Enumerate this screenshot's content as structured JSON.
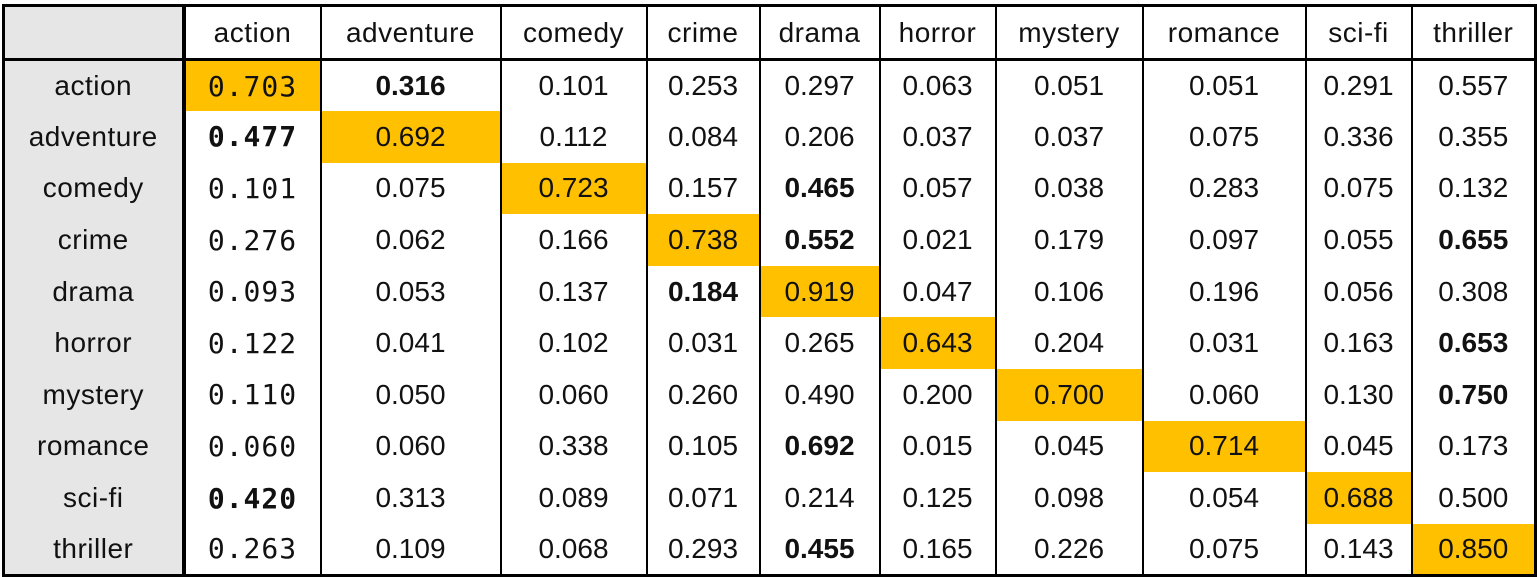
{
  "colors": {
    "diagonal_highlight": "#ffc000",
    "label_background": "#e6e6e6",
    "border": "#000000"
  },
  "chart_data": {
    "type": "table",
    "columns": [
      "action",
      "adventure",
      "comedy",
      "crime",
      "drama",
      "horror",
      "mystery",
      "romance",
      "sci-fi",
      "thriller"
    ],
    "rows": [
      "action",
      "adventure",
      "comedy",
      "crime",
      "drama",
      "horror",
      "mystery",
      "romance",
      "sci-fi",
      "thriller"
    ],
    "values": [
      [
        "0.703",
        "0.316",
        "0.101",
        "0.253",
        "0.297",
        "0.063",
        "0.051",
        "0.051",
        "0.291",
        "0.557"
      ],
      [
        "0.477",
        "0.692",
        "0.112",
        "0.084",
        "0.206",
        "0.037",
        "0.037",
        "0.075",
        "0.336",
        "0.355"
      ],
      [
        "0.101",
        "0.075",
        "0.723",
        "0.157",
        "0.465",
        "0.057",
        "0.038",
        "0.283",
        "0.075",
        "0.132"
      ],
      [
        "0.276",
        "0.062",
        "0.166",
        "0.738",
        "0.552",
        "0.021",
        "0.179",
        "0.097",
        "0.055",
        "0.655"
      ],
      [
        "0.093",
        "0.053",
        "0.137",
        "0.184",
        "0.919",
        "0.047",
        "0.106",
        "0.196",
        "0.056",
        "0.308"
      ],
      [
        "0.122",
        "0.041",
        "0.102",
        "0.031",
        "0.265",
        "0.643",
        "0.204",
        "0.031",
        "0.163",
        "0.653"
      ],
      [
        "0.110",
        "0.050",
        "0.060",
        "0.260",
        "0.490",
        "0.200",
        "0.700",
        "0.060",
        "0.130",
        "0.750"
      ],
      [
        "0.060",
        "0.060",
        "0.338",
        "0.105",
        "0.692",
        "0.015",
        "0.045",
        "0.714",
        "0.045",
        "0.173"
      ],
      [
        "0.420",
        "0.313",
        "0.089",
        "0.071",
        "0.214",
        "0.125",
        "0.098",
        "0.054",
        "0.688",
        "0.500"
      ],
      [
        "0.263",
        "0.109",
        "0.068",
        "0.293",
        "0.455",
        "0.165",
        "0.226",
        "0.075",
        "0.143",
        "0.850"
      ]
    ],
    "bold": [
      [
        false,
        true,
        false,
        false,
        false,
        false,
        false,
        false,
        false,
        false
      ],
      [
        true,
        false,
        false,
        false,
        false,
        false,
        false,
        false,
        false,
        false
      ],
      [
        false,
        false,
        false,
        false,
        true,
        false,
        false,
        false,
        false,
        false
      ],
      [
        false,
        false,
        false,
        false,
        true,
        false,
        false,
        false,
        false,
        true
      ],
      [
        false,
        false,
        false,
        true,
        false,
        false,
        false,
        false,
        false,
        false
      ],
      [
        false,
        false,
        false,
        false,
        false,
        false,
        false,
        false,
        false,
        true
      ],
      [
        false,
        false,
        false,
        false,
        false,
        false,
        false,
        false,
        false,
        true
      ],
      [
        false,
        false,
        false,
        false,
        true,
        false,
        false,
        false,
        false,
        false
      ],
      [
        true,
        false,
        false,
        false,
        false,
        false,
        false,
        false,
        false,
        false
      ],
      [
        false,
        false,
        false,
        false,
        true,
        false,
        false,
        false,
        false,
        false
      ]
    ],
    "highlight": "diagonal"
  }
}
